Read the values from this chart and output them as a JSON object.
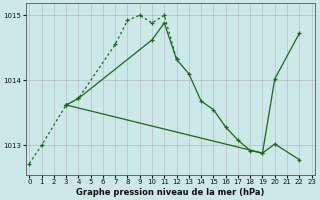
{
  "title": "Graphe pression niveau de la mer (hPa)",
  "bg_color": "#cce8e8",
  "line_color": "#1a6b1a",
  "grid_color": "#b0b0b0",
  "series1_x": [
    0,
    1,
    3,
    4,
    7,
    8,
    9,
    10,
    11,
    12
  ],
  "series1_y": [
    1012.72,
    1013.0,
    1013.62,
    1013.72,
    1014.55,
    1014.92,
    1015.0,
    1014.88,
    1015.0,
    1014.32
  ],
  "series1_style": "dotted",
  "series2_x": [
    3,
    4,
    10,
    11,
    12,
    13,
    14,
    15,
    16,
    17,
    18,
    19,
    20,
    22
  ],
  "series2_y": [
    1013.62,
    1013.72,
    1014.62,
    1014.88,
    1014.32,
    1014.1,
    1013.68,
    1013.55,
    1013.28,
    1013.08,
    1012.92,
    1012.88,
    1014.02,
    1014.72
  ],
  "series2_style": "solid",
  "series3_x": [
    3,
    19,
    20,
    22
  ],
  "series3_y": [
    1013.62,
    1012.88,
    1013.02,
    1012.78
  ],
  "series3_style": "solid",
  "ylim": [
    1012.55,
    1015.18
  ],
  "yticks": [
    1013,
    1014,
    1015
  ],
  "xlim": [
    -0.3,
    23.3
  ],
  "xticks": [
    0,
    1,
    2,
    3,
    4,
    5,
    6,
    7,
    8,
    9,
    10,
    11,
    12,
    13,
    14,
    15,
    16,
    17,
    18,
    19,
    20,
    21,
    22,
    23
  ],
  "xlabel_fontsize": 6.0,
  "tick_fontsize": 5.0,
  "lw": 0.9,
  "marker_size": 3.5
}
